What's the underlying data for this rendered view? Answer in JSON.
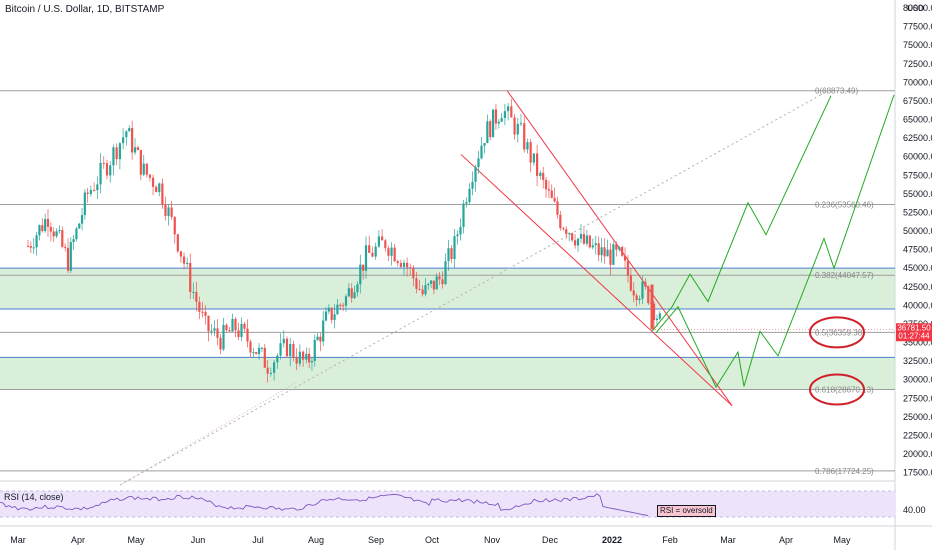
{
  "header": {
    "title": "Bitcoin / U.S. Dollar, 1D, BITSTAMP",
    "currency": "USD"
  },
  "price_badge": {
    "value": "36781.50",
    "time": "01:27:44",
    "color": "#f23645"
  },
  "rsi": {
    "label": "RSI (14, close)",
    "note": "RSI = oversold",
    "tick": "40.00"
  },
  "colors": {
    "up": "#26a69a",
    "down": "#ef5350",
    "green_line": "#22aa22",
    "zone": "#cdeacd",
    "red_line": "#f23645",
    "rsi": "#7e57c2",
    "rsi_band": "#ede4fb"
  },
  "chart_data": {
    "type": "candlestick",
    "title": "Bitcoin / U.S. Dollar, 1D, BITSTAMP",
    "x_ticks": [
      "Mar",
      "Apr",
      "May",
      "Jun",
      "Jul",
      "Aug",
      "Sep",
      "Oct",
      "Nov",
      "Dec",
      "2022",
      "Feb",
      "Mar",
      "Apr",
      "May"
    ],
    "y_ticks": [
      17500,
      20000,
      22500,
      25000,
      27500,
      30000,
      32500,
      35000,
      37500,
      40000,
      42500,
      45000,
      47500,
      50000,
      52500,
      55000,
      57500,
      60000,
      62500,
      65000,
      67500,
      70000,
      72500,
      75000,
      77500,
      80000
    ],
    "ylim": [
      15500,
      80000
    ],
    "price_path": [
      [
        "Mar",
        48000
      ],
      [
        "Mar",
        52000
      ],
      [
        "Mar",
        46000
      ],
      [
        "Apr",
        55000
      ],
      [
        "Apr",
        59000
      ],
      [
        "Apr",
        63500
      ],
      [
        "May",
        58000
      ],
      [
        "May",
        56000
      ],
      [
        "May",
        50000
      ],
      [
        "May",
        43000
      ],
      [
        "Jun",
        37000
      ],
      [
        "Jun",
        35500
      ],
      [
        "Jun",
        37000
      ],
      [
        "Jun",
        35000
      ],
      [
        "Jul",
        32000
      ],
      [
        "Jul",
        34500
      ],
      [
        "Jul",
        32000
      ],
      [
        "Aug",
        38000
      ],
      [
        "Aug",
        41000
      ],
      [
        "Aug",
        46500
      ],
      [
        "Sep",
        48500
      ],
      [
        "Sep",
        46000
      ],
      [
        "Sep",
        41500
      ],
      [
        "Oct",
        43500
      ],
      [
        "Oct",
        48000
      ],
      [
        "Oct",
        57000
      ],
      [
        "Oct",
        63000
      ],
      [
        "Nov",
        66500
      ],
      [
        "Nov",
        63000
      ],
      [
        "Nov",
        57000
      ],
      [
        "Dec",
        51500
      ],
      [
        "Dec",
        48500
      ],
      [
        "Dec",
        47000
      ],
      [
        "2022",
        46500
      ],
      [
        "2022",
        42500
      ],
      [
        "2022",
        41500
      ],
      [
        "2022",
        36781.5
      ]
    ],
    "fibonacci": [
      {
        "level": "0(68873.49)",
        "price": 68873.49
      },
      {
        "level": "0.236(53560.46)",
        "price": 53560.46
      },
      {
        "level": "0.382(44047.57)",
        "price": 44047.57
      },
      {
        "level": "0.5(36359.38)",
        "price": 36359.38
      },
      {
        "level": "0.618(28670.13)",
        "price": 28670.13
      },
      {
        "level": "0.786(17724.25)",
        "price": 17724.25
      }
    ],
    "support_zones": [
      [
        39500,
        45000
      ],
      [
        28670,
        33000
      ]
    ],
    "current_price": 36781.5
  }
}
